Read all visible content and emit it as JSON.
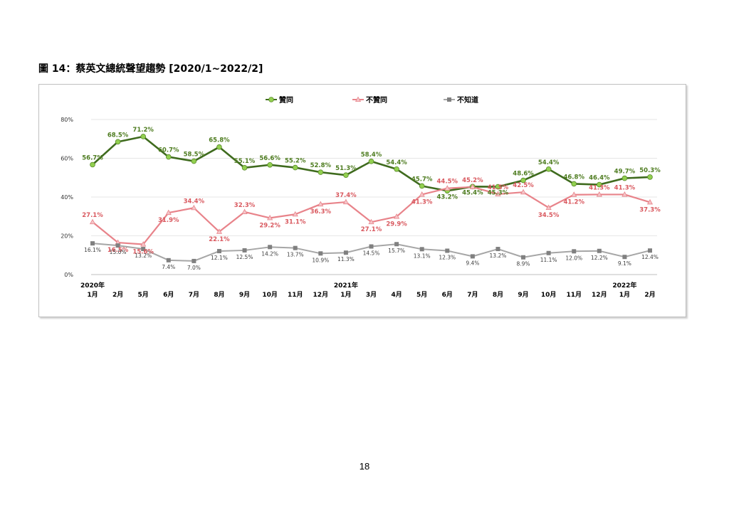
{
  "figure_title": "圖 14：蔡英文總統聲望趨勢 [2020/1~2022/2]",
  "page_number": "18",
  "chart_data": {
    "type": "line",
    "categories": [
      "2020年1月",
      "2月",
      "5月",
      "6月",
      "7月",
      "8月",
      "9月",
      "10月",
      "11月",
      "12月",
      "2021年1月",
      "3月",
      "4月",
      "5月",
      "6月",
      "7月",
      "8月",
      "9月",
      "10月",
      "11月",
      "12月",
      "2022年1月",
      "2月"
    ],
    "x_tick_labels": [
      {
        "year": "2020年",
        "month": "1月"
      },
      {
        "year": "",
        "month": "2月"
      },
      {
        "year": "",
        "month": "5月"
      },
      {
        "year": "",
        "month": "6月"
      },
      {
        "year": "",
        "month": "7月"
      },
      {
        "year": "",
        "month": "8月"
      },
      {
        "year": "",
        "month": "9月"
      },
      {
        "year": "",
        "month": "10月"
      },
      {
        "year": "",
        "month": "11月"
      },
      {
        "year": "",
        "month": "12月"
      },
      {
        "year": "2021年",
        "month": "1月"
      },
      {
        "year": "",
        "month": "3月"
      },
      {
        "year": "",
        "month": "4月"
      },
      {
        "year": "",
        "month": "5月"
      },
      {
        "year": "",
        "month": "6月"
      },
      {
        "year": "",
        "month": "7月"
      },
      {
        "year": "",
        "month": "8月"
      },
      {
        "year": "",
        "month": "9月"
      },
      {
        "year": "",
        "month": "10月"
      },
      {
        "year": "",
        "month": "11月"
      },
      {
        "year": "",
        "month": "12月"
      },
      {
        "year": "2022年",
        "month": "1月"
      },
      {
        "year": "",
        "month": "2月"
      }
    ],
    "y_ticks": [
      "0%",
      "20%",
      "40%",
      "60%",
      "80%"
    ],
    "ylim": [
      0,
      80
    ],
    "grid": true,
    "legend_position": "top",
    "series": [
      {
        "name": "贊同",
        "color": "#3f6b1e",
        "marker_color": "#92d050",
        "label_color": "#4e7c20",
        "marker": "circle",
        "values": [
          56.7,
          68.5,
          71.2,
          60.7,
          58.5,
          65.8,
          55.1,
          56.6,
          55.2,
          52.8,
          51.3,
          58.4,
          54.4,
          45.7,
          43.2,
          45.4,
          45.3,
          48.6,
          54.4,
          46.8,
          46.4,
          49.7,
          50.3
        ],
        "labels": [
          "56.7%",
          "68.5%",
          "71.2%",
          "60.7%",
          "58.5%",
          "65.8%",
          "55.1%",
          "56.6%",
          "55.2%",
          "52.8%",
          "51.3%",
          "58.4%",
          "54.4%",
          "45.7%",
          "43.2%",
          "45.4%",
          "45.3%",
          "48.6%",
          "54.4%",
          "46.8%",
          "46.4%",
          "49.7%",
          "50.3%"
        ]
      },
      {
        "name": "不贊同",
        "color": "#e8838a",
        "marker_color": "#f5c5c8",
        "label_color": "#d9595f",
        "marker": "triangle",
        "values": [
          27.1,
          16.5,
          15.6,
          31.9,
          34.4,
          22.1,
          32.3,
          29.2,
          31.1,
          36.3,
          37.4,
          27.1,
          29.9,
          41.3,
          44.5,
          45.2,
          41.5,
          42.5,
          34.5,
          41.2,
          41.3,
          41.3,
          37.3
        ],
        "labels": [
          "27.1%",
          "16.5%",
          "15.6%",
          "31.9%",
          "34.4%",
          "22.1%",
          "32.3%",
          "29.2%",
          "31.1%",
          "36.3%",
          "37.4%",
          "27.1%",
          "29.9%",
          "41.3%",
          "44.5%",
          "45.2%",
          "41.5%",
          "42.5%",
          "34.5%",
          "41.2%",
          "41.3%",
          "41.3%",
          "37.3%"
        ]
      },
      {
        "name": "不知道",
        "color": "#a6a6a6",
        "marker_color": "#808080",
        "label_color": "#404040",
        "marker": "square",
        "values": [
          16.1,
          15.0,
          13.2,
          7.4,
          7.0,
          12.1,
          12.5,
          14.2,
          13.7,
          10.9,
          11.3,
          14.5,
          15.7,
          13.1,
          12.3,
          9.4,
          13.2,
          8.9,
          11.1,
          12.0,
          12.2,
          9.1,
          12.4
        ],
        "labels": [
          "16.1%",
          "15.0%",
          "13.2%",
          "7.4%",
          "7.0%",
          "12.1%",
          "12.5%",
          "14.2%",
          "13.7%",
          "10.9%",
          "11.3%",
          "14.5%",
          "15.7%",
          "13.1%",
          "12.3%",
          "9.4%",
          "13.2%",
          "8.9%",
          "11.1%",
          "12.0%",
          "12.2%",
          "9.1%",
          "12.4%"
        ]
      }
    ]
  }
}
